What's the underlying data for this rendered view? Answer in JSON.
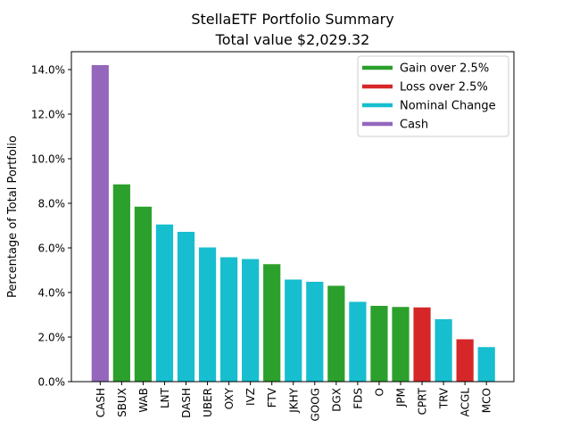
{
  "title_line1": "StellaETF Portfolio Summary",
  "title_line2": "Total value $2,029.32",
  "ylabel": "Percentage of Total Portfolio",
  "legend": [
    {
      "label": "Gain over 2.5%",
      "color": "#2ca02c"
    },
    {
      "label": "Loss over 2.5%",
      "color": "#d62728"
    },
    {
      "label": "Nominal Change",
      "color": "#17becf"
    },
    {
      "label": "Cash",
      "color": "#9467bd"
    }
  ],
  "chart_data": {
    "type": "bar",
    "title": "StellaETF Portfolio Summary\nTotal value $2,029.32",
    "xlabel": "",
    "ylabel": "Percentage of Total Portfolio",
    "ylim": [
      0,
      14.8
    ],
    "yticks": [
      0,
      2,
      4,
      6,
      8,
      10,
      12,
      14
    ],
    "ytick_labels": [
      "0.0%",
      "2.0%",
      "4.0%",
      "6.0%",
      "8.0%",
      "10.0%",
      "12.0%",
      "14.0%"
    ],
    "categories": [
      "CASH",
      "SBUX",
      "WAB",
      "LNT",
      "DASH",
      "UBER",
      "OXY",
      "IVZ",
      "FTV",
      "JKHY",
      "GOOG",
      "DGX",
      "FDS",
      "O",
      "JPM",
      "CPRT",
      "TRV",
      "ACGL",
      "MCO"
    ],
    "values": [
      14.2,
      8.85,
      7.85,
      7.05,
      6.72,
      6.02,
      5.58,
      5.5,
      5.27,
      4.58,
      4.48,
      4.3,
      3.58,
      3.4,
      3.35,
      3.33,
      2.8,
      1.9,
      1.55
    ],
    "colors": [
      "#9467bd",
      "#2ca02c",
      "#2ca02c",
      "#17becf",
      "#17becf",
      "#17becf",
      "#17becf",
      "#17becf",
      "#2ca02c",
      "#17becf",
      "#17becf",
      "#2ca02c",
      "#17becf",
      "#2ca02c",
      "#2ca02c",
      "#d62728",
      "#17becf",
      "#d62728",
      "#17becf"
    ],
    "grid": false,
    "legend_position": "top-right"
  }
}
